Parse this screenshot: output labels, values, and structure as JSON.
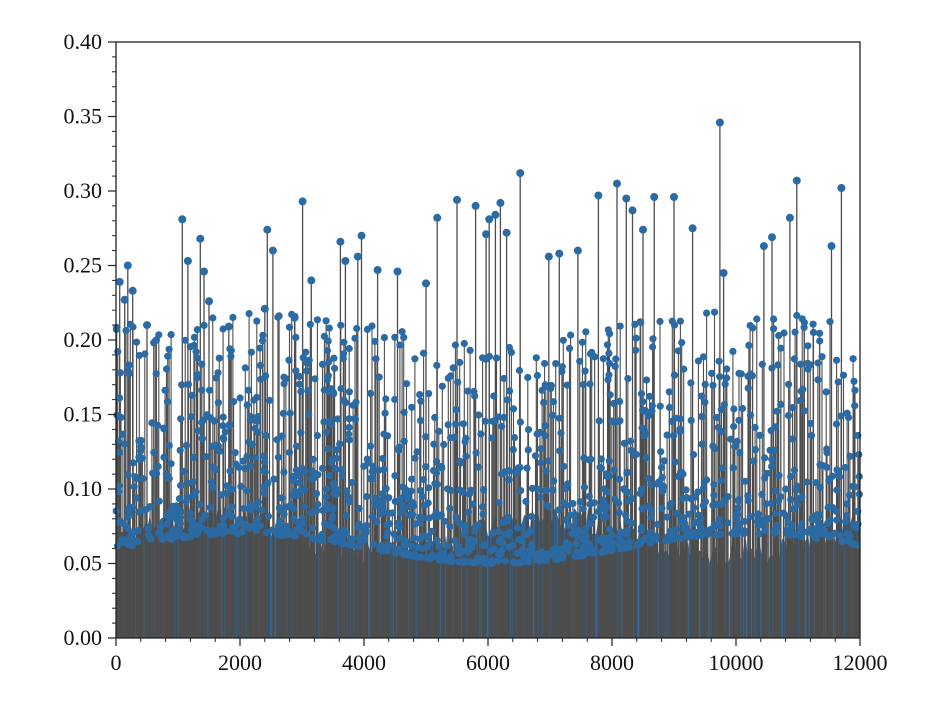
{
  "chart_data": {
    "type": "stem",
    "title": "",
    "xlabel": "",
    "ylabel": "",
    "xlim": [
      0,
      12000
    ],
    "ylim": [
      0,
      0.4
    ],
    "x_ticks": [
      0,
      2000,
      4000,
      6000,
      8000,
      10000,
      12000
    ],
    "x_tick_labels": [
      "0",
      "2000",
      "4000",
      "6000",
      "8000",
      "10000",
      "12000"
    ],
    "y_ticks": [
      0,
      0.05,
      0.1,
      0.15,
      0.2,
      0.25,
      0.3,
      0.35,
      0.4
    ],
    "y_tick_labels": [
      "0.00",
      "0.05",
      "0.10",
      "0.15",
      "0.20",
      "0.25",
      "0.30",
      "0.35",
      "0.40"
    ],
    "y_minor_step": 0.01,
    "x_minor_step": 400,
    "grid": false,
    "legend": "none",
    "stem_color": "#4d4d4d",
    "marker_color": "#2b6aa3",
    "num_points": 12000,
    "highlighted_points": [
      {
        "x": 60,
        "y": 0.239
      },
      {
        "x": 140,
        "y": 0.227
      },
      {
        "x": 190,
        "y": 0.25
      },
      {
        "x": 270,
        "y": 0.233
      },
      {
        "x": 500,
        "y": 0.21
      },
      {
        "x": 1070,
        "y": 0.281
      },
      {
        "x": 1160,
        "y": 0.253
      },
      {
        "x": 1360,
        "y": 0.268
      },
      {
        "x": 1420,
        "y": 0.246
      },
      {
        "x": 1500,
        "y": 0.226
      },
      {
        "x": 1820,
        "y": 0.209
      },
      {
        "x": 2400,
        "y": 0.221
      },
      {
        "x": 2440,
        "y": 0.274
      },
      {
        "x": 2530,
        "y": 0.26
      },
      {
        "x": 2880,
        "y": 0.215
      },
      {
        "x": 3010,
        "y": 0.293
      },
      {
        "x": 3150,
        "y": 0.24
      },
      {
        "x": 3620,
        "y": 0.266
      },
      {
        "x": 3700,
        "y": 0.253
      },
      {
        "x": 3900,
        "y": 0.256
      },
      {
        "x": 3960,
        "y": 0.27
      },
      {
        "x": 4220,
        "y": 0.247
      },
      {
        "x": 4540,
        "y": 0.246
      },
      {
        "x": 5000,
        "y": 0.238
      },
      {
        "x": 5180,
        "y": 0.282
      },
      {
        "x": 5500,
        "y": 0.294
      },
      {
        "x": 5800,
        "y": 0.29
      },
      {
        "x": 5970,
        "y": 0.271
      },
      {
        "x": 6020,
        "y": 0.281
      },
      {
        "x": 6120,
        "y": 0.284
      },
      {
        "x": 6200,
        "y": 0.292
      },
      {
        "x": 6300,
        "y": 0.272
      },
      {
        "x": 6520,
        "y": 0.312
      },
      {
        "x": 6980,
        "y": 0.256
      },
      {
        "x": 7150,
        "y": 0.258
      },
      {
        "x": 7450,
        "y": 0.26
      },
      {
        "x": 7780,
        "y": 0.297
      },
      {
        "x": 8080,
        "y": 0.305
      },
      {
        "x": 8230,
        "y": 0.295
      },
      {
        "x": 8330,
        "y": 0.287
      },
      {
        "x": 8500,
        "y": 0.274
      },
      {
        "x": 8680,
        "y": 0.296
      },
      {
        "x": 9000,
        "y": 0.296
      },
      {
        "x": 9300,
        "y": 0.275
      },
      {
        "x": 9740,
        "y": 0.346
      },
      {
        "x": 9800,
        "y": 0.245
      },
      {
        "x": 10450,
        "y": 0.263
      },
      {
        "x": 10580,
        "y": 0.269
      },
      {
        "x": 10870,
        "y": 0.282
      },
      {
        "x": 10980,
        "y": 0.307
      },
      {
        "x": 11540,
        "y": 0.263
      },
      {
        "x": 11700,
        "y": 0.302
      }
    ]
  }
}
